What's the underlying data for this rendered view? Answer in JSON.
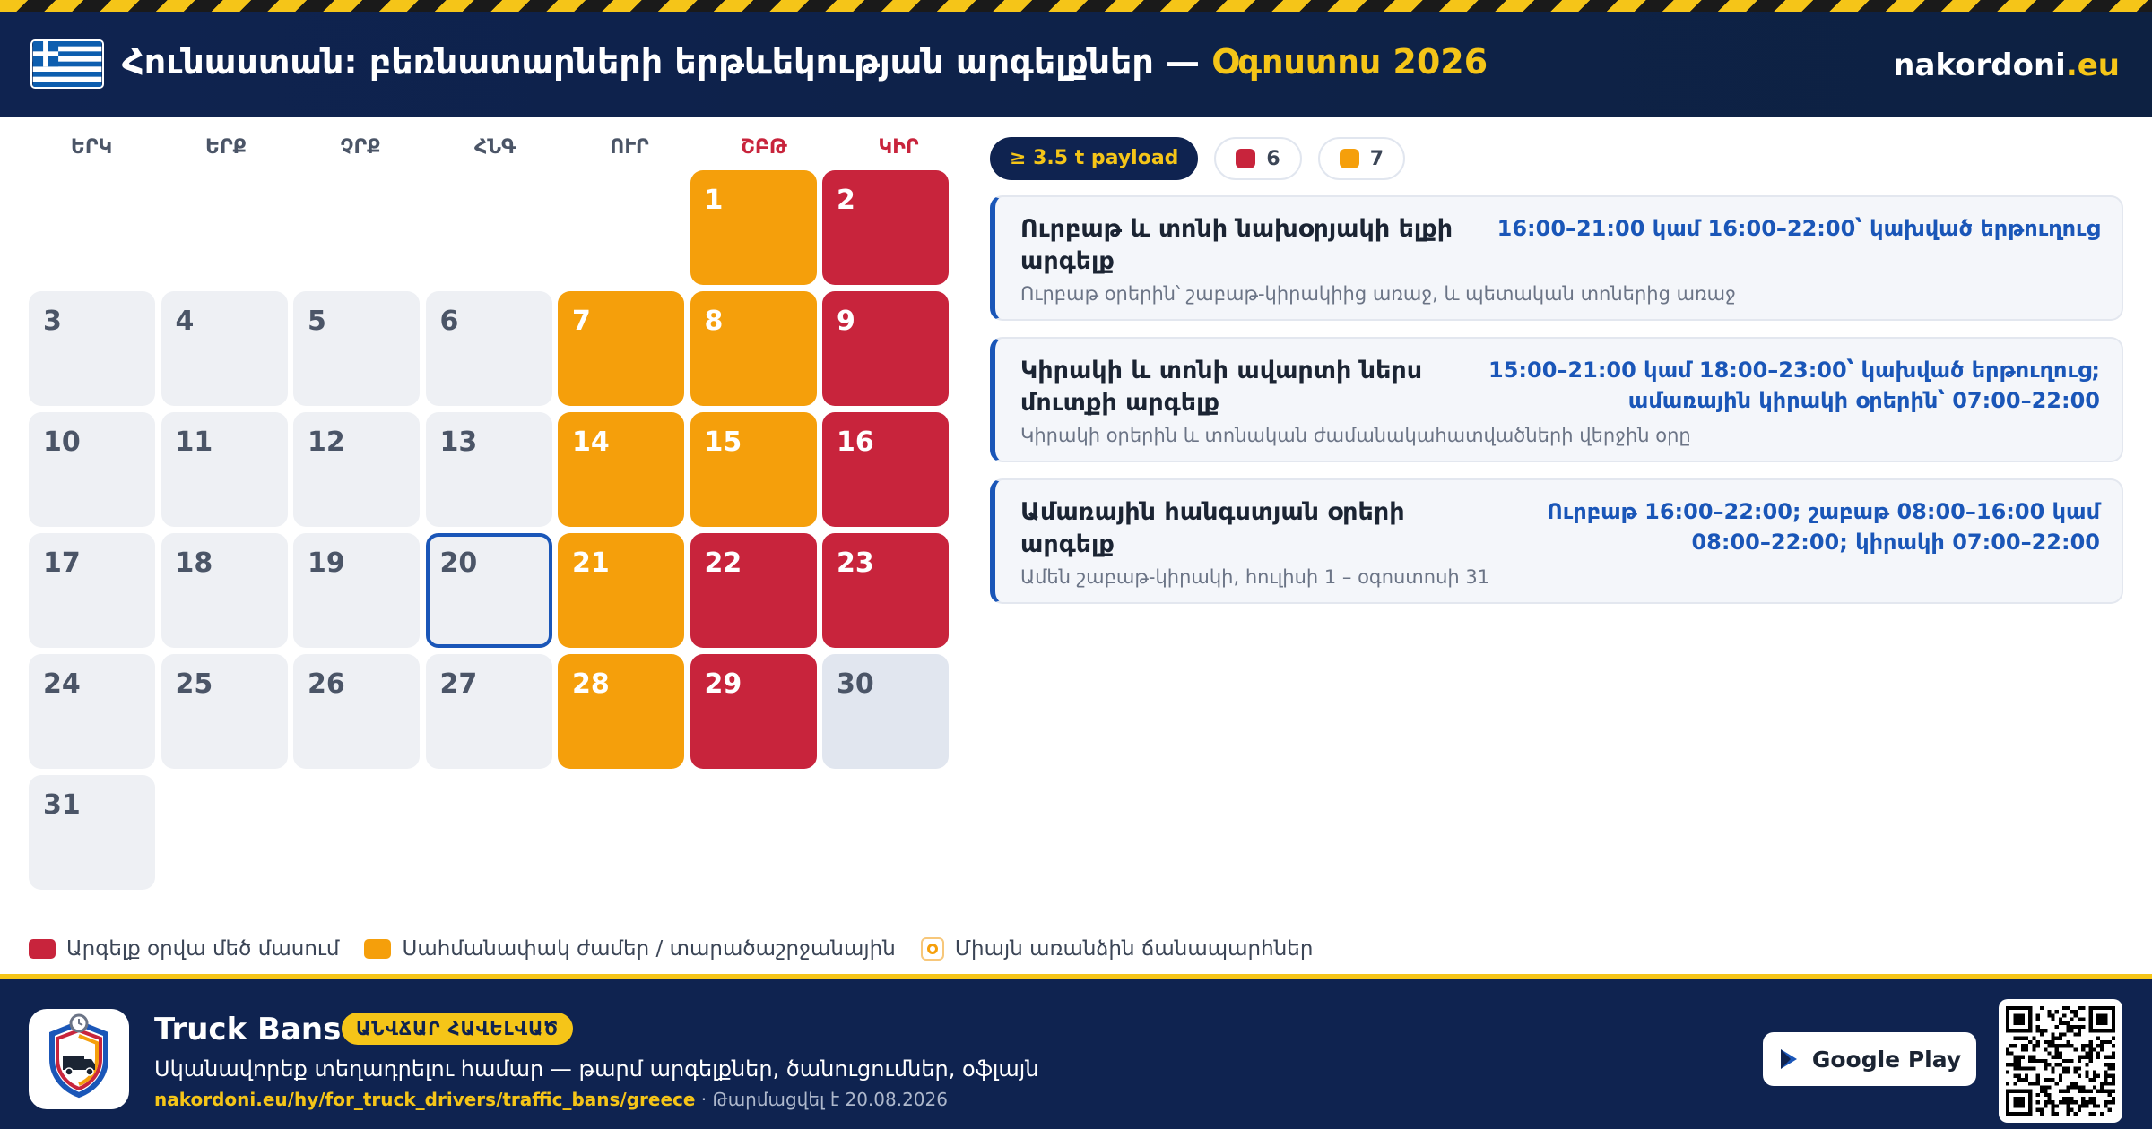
{
  "header": {
    "title_main": "Հունաստան: բեռնատարների երթևեկության արգելքներ — ",
    "title_month": "Օգոստոս 2026",
    "brand_main": "nakordoni",
    "brand_tld": ".eu"
  },
  "calendar": {
    "weekdays": [
      "ԵՐԿ",
      "ԵՐՔ",
      "ՉՐՔ",
      "ՀՆԳ",
      "ՈՒՐ",
      "ՇԲԹ",
      "ԿԻՐ"
    ],
    "days": [
      {
        "label": "1",
        "status": "orange"
      },
      {
        "label": "2",
        "status": "red"
      },
      {
        "label": "3",
        "status": "normal"
      },
      {
        "label": "4",
        "status": "normal"
      },
      {
        "label": "5",
        "status": "normal"
      },
      {
        "label": "6",
        "status": "normal"
      },
      {
        "label": "7",
        "status": "orange"
      },
      {
        "label": "8",
        "status": "orange"
      },
      {
        "label": "9",
        "status": "red"
      },
      {
        "label": "10",
        "status": "normal"
      },
      {
        "label": "11",
        "status": "normal"
      },
      {
        "label": "12",
        "status": "normal"
      },
      {
        "label": "13",
        "status": "normal"
      },
      {
        "label": "14",
        "status": "orange"
      },
      {
        "label": "15",
        "status": "orange"
      },
      {
        "label": "16",
        "status": "red"
      },
      {
        "label": "17",
        "status": "normal"
      },
      {
        "label": "18",
        "status": "normal"
      },
      {
        "label": "19",
        "status": "normal"
      },
      {
        "label": "20",
        "status": "today"
      },
      {
        "label": "21",
        "status": "orange"
      },
      {
        "label": "22",
        "status": "red"
      },
      {
        "label": "23",
        "status": "red"
      },
      {
        "label": "24",
        "status": "normal"
      },
      {
        "label": "25",
        "status": "normal"
      },
      {
        "label": "26",
        "status": "normal"
      },
      {
        "label": "27",
        "status": "normal"
      },
      {
        "label": "28",
        "status": "orange"
      },
      {
        "label": "29",
        "status": "red"
      },
      {
        "label": "30",
        "status": "muted"
      },
      {
        "label": "31",
        "status": "normal"
      }
    ]
  },
  "legend": {
    "red": "Արգելք օրվա մեծ մասում",
    "orange": "Սահմանափակ ժամեր / տարածաշրջանային",
    "roads": "Միայն առանձին ճանապարհներ"
  },
  "chips": {
    "payload": "≥ 3.5 t payload",
    "red_count": "6",
    "orange_count": "7"
  },
  "rules": [
    {
      "title": "Ուրբաթ և տոնի նախօրյակի ելքի արգելք",
      "time": "16:00–21:00 կամ 16:00–22:00՝ կախված երթուղուց",
      "desc": "Ուրբաթ օրերին՝ շաբաթ-կիրակիից առաջ, և պետական տոներից առաջ"
    },
    {
      "title": "Կիրակի և տոնի ավարտի ներս մուտքի արգելք",
      "time": "15:00–21:00 կամ 18:00–23:00՝ կախված երթուղուց; ամառային կիրակի օրերին՝ 07:00–22:00",
      "desc": "Կիրակի օրերին և տոնական ժամանակահատվածների վերջին օրը"
    },
    {
      "title": "Ամառային հանգստյան օրերի արգելք",
      "time": "Ուրբաթ 16:00–22:00; շաբաթ 08:00–16:00 կամ 08:00–22:00; կիրակի 07:00–22:00",
      "desc": "Ամեն շաբաթ-կիրակի, հուլիսի 1 – օգոստոսի 31"
    }
  ],
  "footer": {
    "app_name": "Truck Bans",
    "badge": "ԱՆՎՃԱՐ ՀԱՎԵԼՎԱԾ",
    "tagline": "Սկանավորեք տեղադրելու համար — թարմ արգելքներ, ծանուցումներ, օֆլայն",
    "url": "nakordoni.eu/hy/for_truck_drivers/traffic_bans/greece",
    "updated": " · Թարմացվել է 20.08.2026",
    "store_button": "Google Play"
  },
  "colors": {
    "navy": "#0f2350",
    "accent_yellow": "#f5c518",
    "ban_red": "#c8243c",
    "limited_orange": "#f59f0b",
    "link_blue": "#1a56b8"
  },
  "icons": {
    "flag": "greece-flag-icon",
    "app": "truck-shield-icon",
    "store": "google-play-icon",
    "qr": "qr-code-icon"
  }
}
